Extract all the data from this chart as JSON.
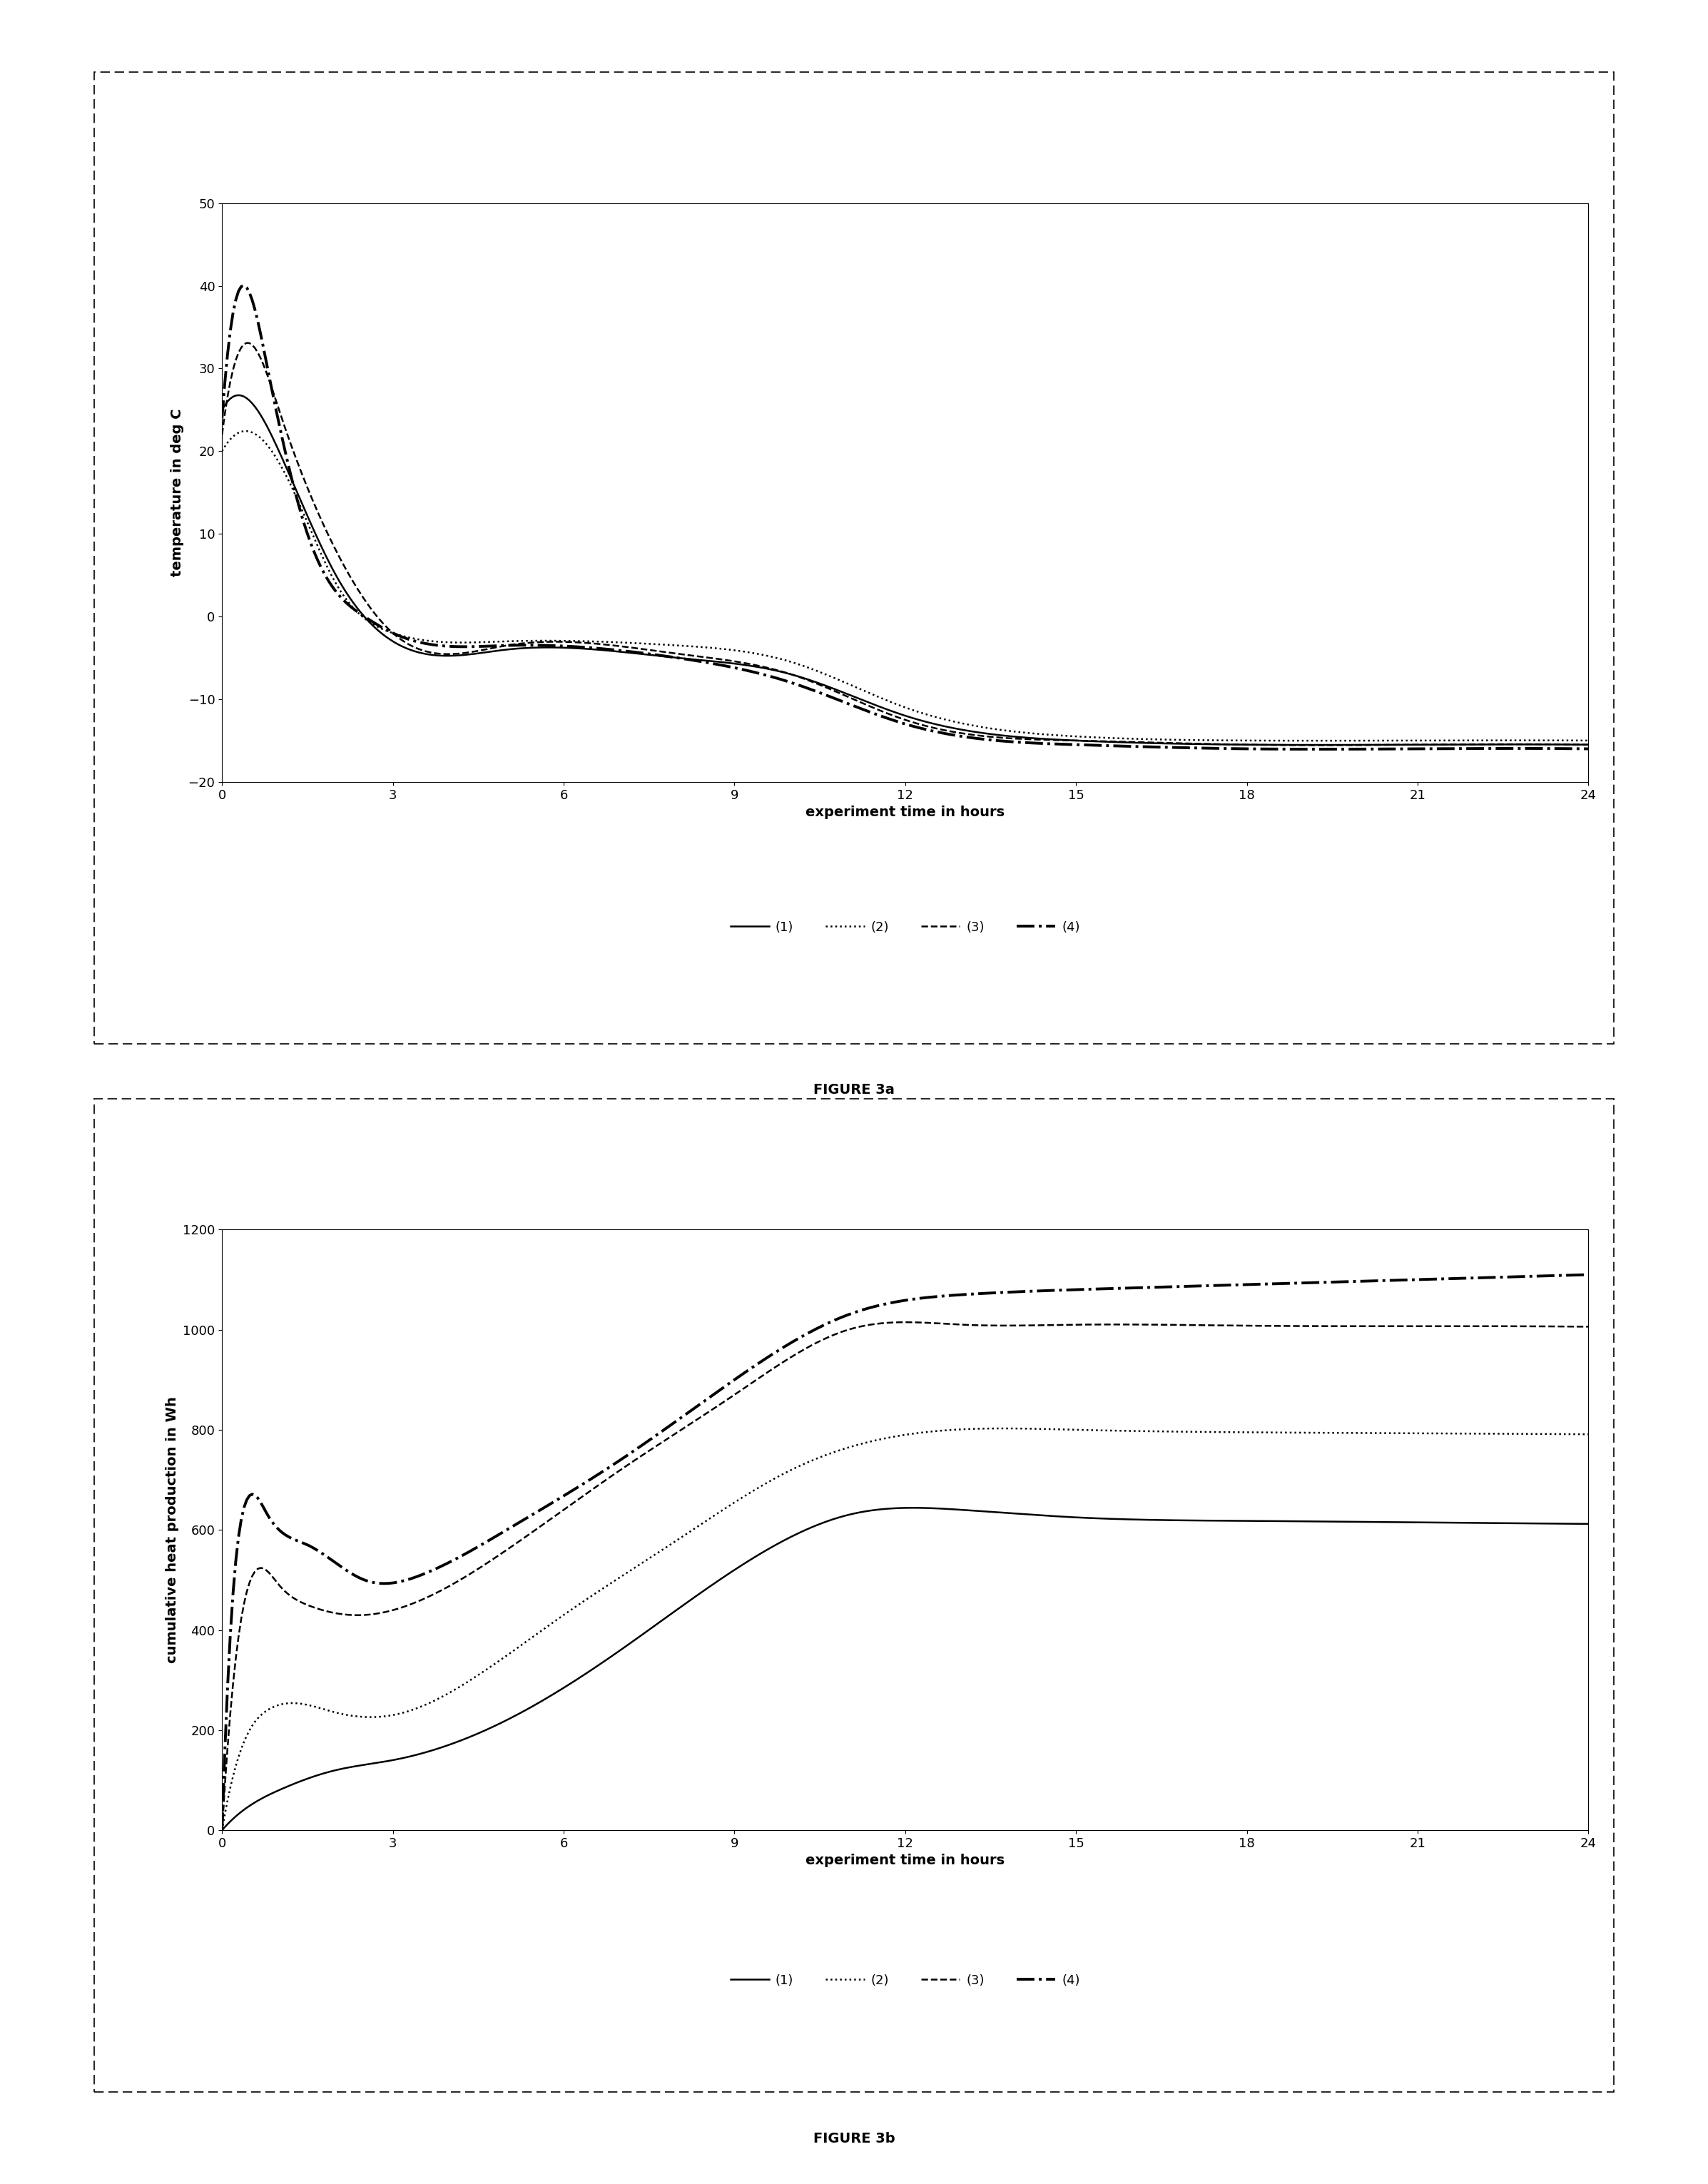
{
  "fig3a": {
    "title": "FIGURE 3a",
    "xlabel": "experiment time in hours",
    "ylabel": "temperature in deg C",
    "xlim": [
      0,
      24
    ],
    "ylim": [
      -20,
      50
    ],
    "xticks": [
      0,
      3,
      6,
      9,
      12,
      15,
      18,
      21,
      24
    ],
    "yticks": [
      -20,
      -10,
      0,
      10,
      20,
      30,
      40,
      50
    ],
    "legend": [
      "(1)",
      "(2)",
      "(3)",
      "(4)"
    ]
  },
  "fig3b": {
    "title": "FIGURE 3b",
    "xlabel": "experiment time in hours",
    "ylabel": "cumulative heat production in Wh",
    "xlim": [
      0,
      24
    ],
    "ylim": [
      0,
      1200
    ],
    "xticks": [
      0,
      3,
      6,
      9,
      12,
      15,
      18,
      21,
      24
    ],
    "yticks": [
      0,
      200,
      400,
      600,
      800,
      1000,
      1200
    ],
    "legend": [
      "(1)",
      "(2)",
      "(3)",
      "(4)"
    ]
  },
  "background_color": "#ffffff",
  "line_color": "#000000"
}
